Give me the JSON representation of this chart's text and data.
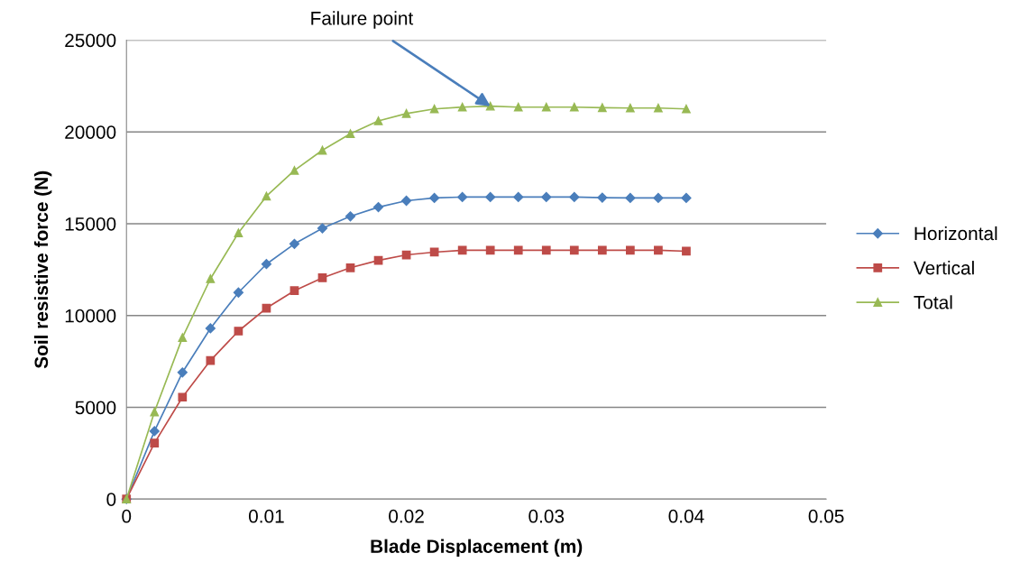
{
  "chart_data": {
    "type": "line",
    "xlabel": "Blade Displacement (m)",
    "ylabel": "Soil resistive force (N)",
    "x": [
      0,
      0.002,
      0.004,
      0.006,
      0.008,
      0.01,
      0.012,
      0.014,
      0.016,
      0.018,
      0.02,
      0.022,
      0.024,
      0.026,
      0.028,
      0.03,
      0.032,
      0.034,
      0.036,
      0.038,
      0.04
    ],
    "series": [
      {
        "name": "Horizontal",
        "color": "#4a7ebb",
        "marker": "diamond",
        "values": [
          0,
          3700,
          6900,
          9300,
          11250,
          12800,
          13900,
          14750,
          15400,
          15900,
          16250,
          16400,
          16450,
          16450,
          16450,
          16450,
          16450,
          16420,
          16400,
          16400,
          16400
        ]
      },
      {
        "name": "Vertical",
        "color": "#be4b48",
        "marker": "square",
        "values": [
          0,
          3050,
          5550,
          7550,
          9150,
          10400,
          11350,
          12050,
          12600,
          13000,
          13300,
          13450,
          13550,
          13550,
          13550,
          13550,
          13550,
          13550,
          13550,
          13550,
          13500
        ]
      },
      {
        "name": "Total",
        "color": "#98b954",
        "marker": "triangle",
        "values": [
          0,
          4750,
          8800,
          12000,
          14500,
          16500,
          17900,
          19000,
          19900,
          20600,
          21000,
          21250,
          21350,
          21400,
          21350,
          21350,
          21350,
          21320,
          21300,
          21300,
          21250
        ]
      }
    ],
    "xlim": [
      0,
      0.05
    ],
    "xticks": [
      0,
      0.01,
      0.02,
      0.03,
      0.04,
      0.05
    ],
    "ylim": [
      0,
      25000
    ],
    "yticks": [
      0,
      5000,
      10000,
      15000,
      20000,
      25000
    ],
    "grid": "y",
    "legend": "right",
    "line_style": "solid",
    "annotations": [
      {
        "text": "Failure point",
        "x": 0.026,
        "y": 21400
      }
    ]
  }
}
